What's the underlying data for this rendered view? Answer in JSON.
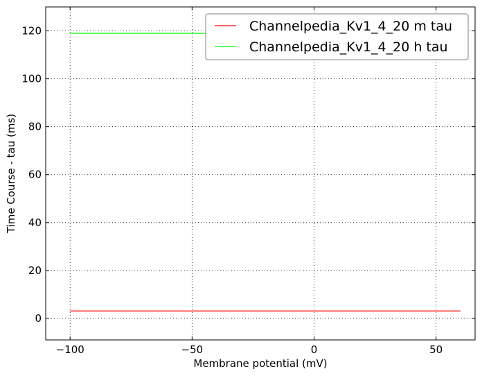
{
  "chart_data": {
    "type": "line",
    "title": "",
    "xlabel": "Membrane potential (mV)",
    "ylabel": "Time Course - tau (ms)",
    "xlim": [
      -110,
      66
    ],
    "ylim": [
      -9,
      130
    ],
    "xticks": [
      -100,
      -50,
      0,
      50
    ],
    "xtick_labels": [
      "−100",
      "−50",
      "0",
      "50"
    ],
    "yticks": [
      0,
      20,
      40,
      60,
      80,
      100,
      120
    ],
    "ytick_labels": [
      "0",
      "20",
      "40",
      "60",
      "80",
      "100",
      "120"
    ],
    "grid": true,
    "legend_position": "top-right",
    "series": [
      {
        "name": "Channelpedia_Kv1_4_20 m tau",
        "color": "#ff0000",
        "x": [
          -100,
          60
        ],
        "y": [
          3.1,
          3.1
        ]
      },
      {
        "name": "Channelpedia_Kv1_4_20 h tau",
        "color": "#00ff00",
        "x": [
          -100,
          60
        ],
        "y": [
          119,
          119
        ]
      }
    ]
  }
}
